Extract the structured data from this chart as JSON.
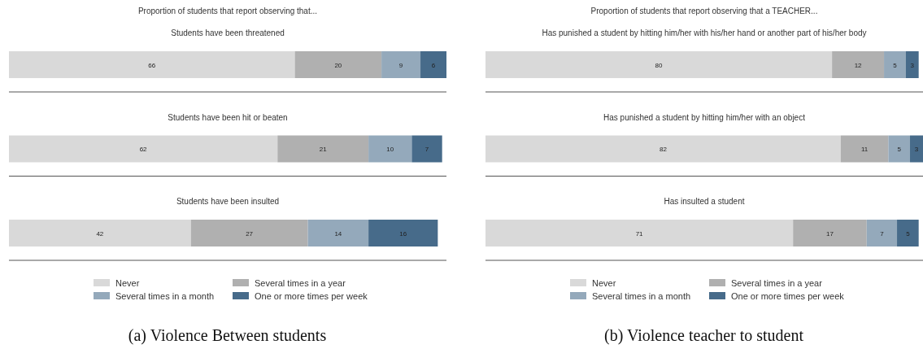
{
  "chart_data": [
    {
      "type": "bar",
      "orientation": "horizontal",
      "stacked": true,
      "title": "Proportion of students that report observing that...",
      "categories": [
        "Students have been threatened",
        "Students have been hit or beaten",
        "Students have been insulted"
      ],
      "series": [
        {
          "name": "Never",
          "color": "#d9d9d9",
          "values": [
            66,
            62,
            42
          ]
        },
        {
          "name": "Several times in a year",
          "color": "#b0b0b0",
          "values": [
            20,
            21,
            27
          ]
        },
        {
          "name": "Several times in a month",
          "color": "#94a9bb",
          "values": [
            9,
            10,
            14
          ]
        },
        {
          "name": "One or more times per week",
          "color": "#476b8a",
          "values": [
            6,
            7,
            16
          ]
        }
      ],
      "data_labels": true,
      "legend": "bottom",
      "annotations": [
        "(a) Violence Between students"
      ]
    },
    {
      "type": "bar",
      "orientation": "horizontal",
      "stacked": true,
      "title": "Proportion of students that report observing that a TEACHER...",
      "categories": [
        "Has punished a student by hitting him/her with his/her hand or another part of his/her body",
        "Has punished a student by hitting him/her with an object",
        "Has insulted a student"
      ],
      "series": [
        {
          "name": "Never",
          "color": "#d9d9d9",
          "values": [
            80,
            82,
            71
          ]
        },
        {
          "name": "Several times in a year",
          "color": "#b0b0b0",
          "values": [
            12,
            11,
            17
          ]
        },
        {
          "name": "Several times in a month",
          "color": "#94a9bb",
          "values": [
            5,
            5,
            7
          ]
        },
        {
          "name": "One or more times per week",
          "color": "#476b8a",
          "values": [
            3,
            3,
            5
          ]
        }
      ],
      "data_labels": true,
      "legend": "bottom",
      "annotations": [
        "(b) Violence teacher to student"
      ]
    }
  ]
}
